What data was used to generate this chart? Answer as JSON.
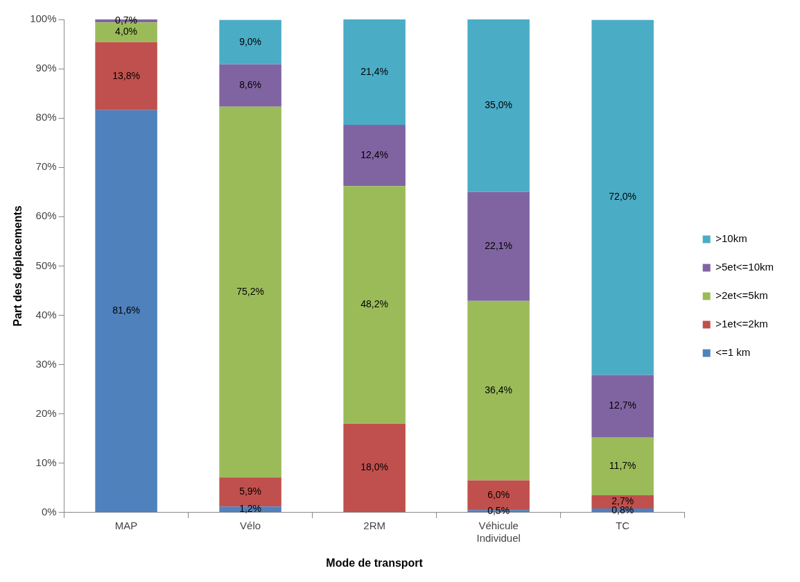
{
  "chart_data": {
    "type": "bar",
    "stacked": true,
    "xlabel": "Mode de transport",
    "ylabel": "Part des déplacements",
    "categories": [
      "MAP",
      "Vélo",
      "2RM",
      "Véhicule Individuel",
      "TC"
    ],
    "series": [
      {
        "name": "<=1 km",
        "color": "#4f81bd",
        "values": [
          81.6,
          1.2,
          0,
          0.5,
          0.8
        ],
        "value_labels": [
          "81,6%",
          "1,2%",
          null,
          "0,5%",
          "0,8%"
        ]
      },
      {
        "name": ">1et<=2km",
        "color": "#c0504d",
        "values": [
          13.8,
          5.9,
          18.0,
          6.0,
          2.7
        ],
        "value_labels": [
          "13,8%",
          "5,9%",
          "18,0%",
          "6,0%",
          "2,7%"
        ]
      },
      {
        "name": ">2et<=5km",
        "color": "#9bbb59",
        "values": [
          4.0,
          75.2,
          48.2,
          36.4,
          11.7
        ],
        "value_labels": [
          "4,0%",
          "75,2%",
          "48,2%",
          "36,4%",
          "11,7%"
        ]
      },
      {
        "name": ">5et<=10km",
        "color": "#8064a2",
        "values": [
          0.7,
          8.6,
          12.4,
          22.1,
          12.7
        ],
        "value_labels": [
          "0,7%",
          "8,6%",
          "12,4%",
          "22,1%",
          "12,7%"
        ]
      },
      {
        "name": ">10km",
        "color": "#4bacc6",
        "values": [
          null,
          9.0,
          21.4,
          35.0,
          72.0
        ],
        "value_labels": [
          null,
          "9,0%",
          "21,4%",
          "35,0%",
          "72,0%"
        ]
      }
    ],
    "ylim": [
      0,
      100
    ],
    "yticks": [
      {
        "value": 0,
        "label": "0%"
      },
      {
        "value": 10,
        "label": "10%"
      },
      {
        "value": 20,
        "label": "20%"
      },
      {
        "value": 30,
        "label": "30%"
      },
      {
        "value": 40,
        "label": "40%"
      },
      {
        "value": 50,
        "label": "50%"
      },
      {
        "value": 60,
        "label": "60%"
      },
      {
        "value": 70,
        "label": "70%"
      },
      {
        "value": 80,
        "label": "80%"
      },
      {
        "value": 90,
        "label": "90%"
      },
      {
        "value": 100,
        "label": "100%"
      }
    ],
    "grid": false,
    "legend": "right"
  }
}
